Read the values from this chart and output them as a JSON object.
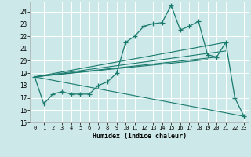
{
  "xlabel": "Humidex (Indice chaleur)",
  "xlim": [
    -0.5,
    23.5
  ],
  "ylim": [
    15,
    24.8
  ],
  "yticks": [
    15,
    16,
    17,
    18,
    19,
    20,
    21,
    22,
    23,
    24
  ],
  "xticks": [
    0,
    1,
    2,
    3,
    4,
    5,
    6,
    7,
    8,
    9,
    10,
    11,
    12,
    13,
    14,
    15,
    16,
    17,
    18,
    19,
    20,
    21,
    22,
    23
  ],
  "bg_color": "#cce8e8",
  "line_color": "#1a7a6e",
  "grid_color": "#ffffff",
  "main_x": [
    0,
    1,
    2,
    3,
    4,
    5,
    6,
    7,
    8,
    9,
    10,
    11,
    12,
    13,
    14,
    15,
    16,
    17,
    18,
    19,
    20,
    21,
    22,
    23
  ],
  "main_y": [
    18.7,
    16.5,
    17.3,
    17.5,
    17.3,
    17.3,
    17.3,
    18.0,
    18.3,
    19.0,
    21.5,
    22.0,
    22.8,
    23.0,
    23.1,
    24.5,
    22.5,
    22.8,
    23.2,
    20.5,
    20.3,
    21.5,
    17.0,
    15.5
  ],
  "trend_lines": [
    {
      "x": [
        0,
        23
      ],
      "y": [
        18.7,
        15.5
      ]
    },
    {
      "x": [
        0,
        19
      ],
      "y": [
        18.7,
        20.1
      ]
    },
    {
      "x": [
        0,
        20
      ],
      "y": [
        18.7,
        20.3
      ]
    },
    {
      "x": [
        0,
        21
      ],
      "y": [
        18.7,
        20.8
      ]
    },
    {
      "x": [
        0,
        21
      ],
      "y": [
        18.7,
        21.5
      ]
    }
  ]
}
